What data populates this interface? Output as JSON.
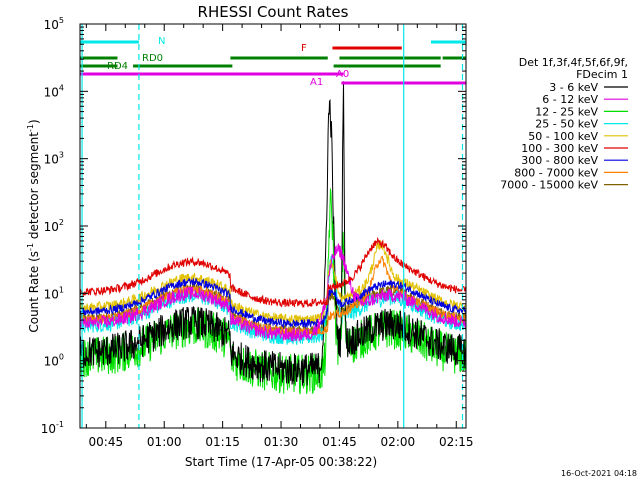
{
  "chart_data": {
    "type": "line",
    "title": "RHESSI Count Rates",
    "xlabel": "Start Time (17-Apr-05 00:38:22)",
    "ylabel": "Count Rate (s",
    "ylabel_sup1": "-1",
    "ylabel_mid": " detector segment",
    "ylabel_sup2": "-1",
    "ylabel_end": ")",
    "x_range_min": [
      38.37,
      137.5
    ],
    "y_log_range": [
      -1,
      5
    ],
    "y_scale": "log",
    "x_ticks": [
      {
        "min": 45,
        "label": "00:45"
      },
      {
        "min": 60,
        "label": "01:00"
      },
      {
        "min": 75,
        "label": "01:15"
      },
      {
        "min": 90,
        "label": "01:30"
      },
      {
        "min": 105,
        "label": "01:45"
      },
      {
        "min": 120,
        "label": "02:00"
      },
      {
        "min": 135,
        "label": "02:15"
      }
    ],
    "y_ticks": [
      {
        "exp": -1,
        "label": "10",
        "sup": "-1"
      },
      {
        "exp": 0,
        "label": "10",
        "sup": "0"
      },
      {
        "exp": 1,
        "label": "10",
        "sup": "1"
      },
      {
        "exp": 2,
        "label": "10",
        "sup": "2"
      },
      {
        "exp": 3,
        "label": "10",
        "sup": "3"
      },
      {
        "exp": 4,
        "label": "10",
        "sup": "4"
      },
      {
        "exp": 5,
        "label": "10",
        "sup": "5"
      }
    ],
    "legend_header": [
      "Det 1f,3f,4f,5f,6f,9f,",
      "FDecim 1"
    ],
    "series": [
      {
        "name": "3 - 6 keV",
        "color": "#000000"
      },
      {
        "name": "6 - 12 keV",
        "color": "#e000e0"
      },
      {
        "name": "12 - 25 keV",
        "color": "#00e000"
      },
      {
        "name": "25 - 50 keV",
        "color": "#00e8e8"
      },
      {
        "name": "50 - 100 keV",
        "color": "#e0c000"
      },
      {
        "name": "100 - 300 keV",
        "color": "#e00000"
      },
      {
        "name": "300 - 800 keV",
        "color": "#0000e0"
      },
      {
        "name": "800 - 7000 keV",
        "color": "#ff8000"
      },
      {
        "name": "7000 - 15000 keV",
        "color": "#806000"
      }
    ],
    "flag_bars": [
      {
        "label": "N",
        "color": "#00e8e8",
        "segments": [
          [
            38.4,
            53.5
          ],
          [
            128.5,
            137.5
          ]
        ]
      },
      {
        "label": "F",
        "color": "#e00000",
        "segments": [
          [
            103.2,
            121.0
          ]
        ]
      },
      {
        "label": "RD0",
        "color": "#008000",
        "segments": [
          [
            38.4,
            48.0
          ],
          [
            77.0,
            102.0
          ],
          [
            105.0,
            131.0
          ],
          [
            131.5,
            137.5
          ]
        ]
      },
      {
        "label": "RD4",
        "color": "#008000",
        "segments": [
          [
            38.4,
            48.0
          ],
          [
            52.0,
            77.5
          ],
          [
            103.5,
            121.0
          ],
          [
            120.0,
            131.0
          ]
        ]
      },
      {
        "label": "A0",
        "color": "#e000e0",
        "segments": [
          [
            38.4,
            106.0
          ]
        ]
      },
      {
        "label": "A1",
        "color": "#e000e0",
        "segments": [
          [
            105.5,
            137.5
          ]
        ]
      }
    ],
    "vlines_dashed_min": [
      53.5,
      136.6
    ],
    "vlines_solid_min": [
      38.9,
      121.5
    ],
    "footer_date": "16-Oct-2021 04:18"
  }
}
